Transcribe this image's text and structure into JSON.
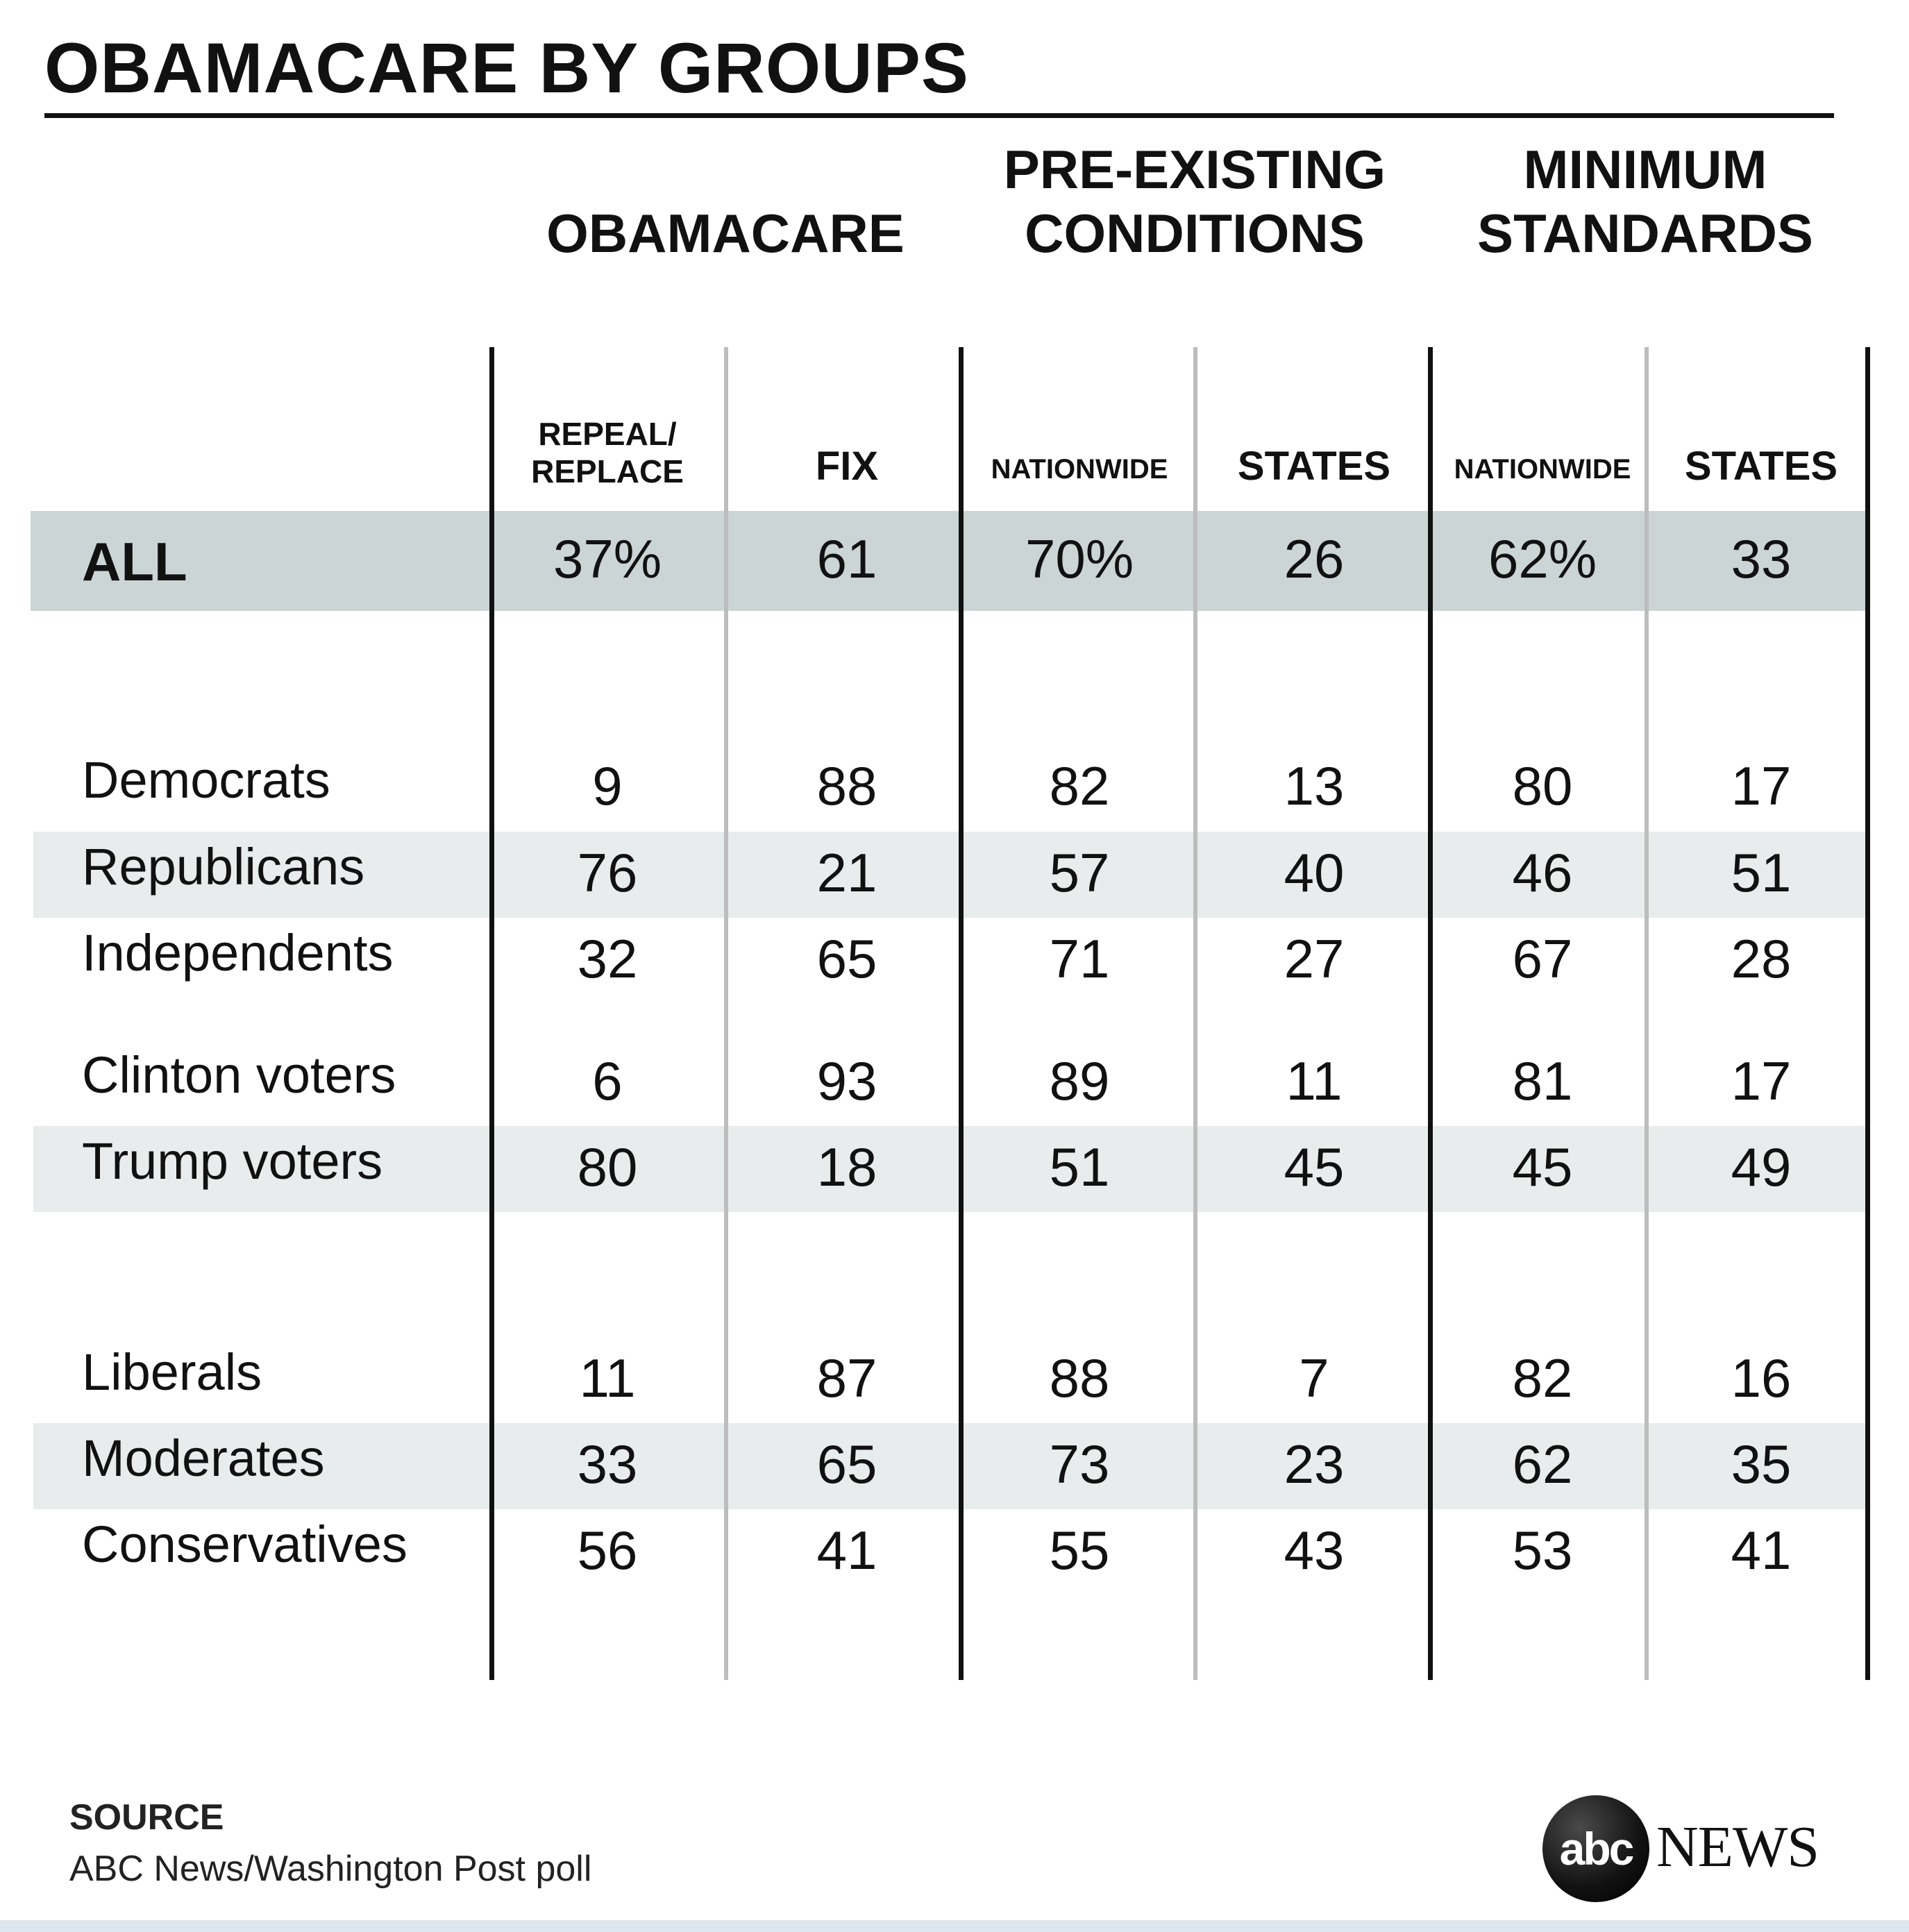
{
  "title": "OBAMACARE BY GROUPS",
  "chart_data": {
    "type": "table",
    "column_groups": [
      {
        "lines": [
          "OBAMACARE"
        ],
        "columns": [
          "REPEAL/ REPLACE",
          "FIX"
        ]
      },
      {
        "lines": [
          "PRE-EXISTING",
          "CONDITIONS"
        ],
        "columns": [
          "NATIONWIDE",
          "STATES"
        ]
      },
      {
        "lines": [
          "MINIMUM",
          "STANDARDS"
        ],
        "columns": [
          "NATIONWIDE",
          "STATES"
        ]
      }
    ],
    "columns": [
      "REPEAL/ REPLACE",
      "FIX",
      "NATIONWIDE",
      "STATES",
      "NATIONWIDE",
      "STATES"
    ],
    "rows": [
      {
        "label": "ALL",
        "values": [
          "37%",
          "61",
          "70%",
          "26",
          "62%",
          "33"
        ]
      },
      {
        "label": "Democrats",
        "values": [
          "9",
          "88",
          "82",
          "13",
          "80",
          "17"
        ]
      },
      {
        "label": "Republicans",
        "values": [
          "76",
          "21",
          "57",
          "40",
          "46",
          "51"
        ]
      },
      {
        "label": "Independents",
        "values": [
          "32",
          "65",
          "71",
          "27",
          "67",
          "28"
        ]
      },
      {
        "label": "Clinton voters",
        "values": [
          "6",
          "93",
          "89",
          "11",
          "81",
          "17"
        ]
      },
      {
        "label": "Trump voters",
        "values": [
          "80",
          "18",
          "51",
          "45",
          "45",
          "49"
        ]
      },
      {
        "label": "Liberals",
        "values": [
          "11",
          "87",
          "88",
          "7",
          "82",
          "16"
        ]
      },
      {
        "label": "Moderates",
        "values": [
          "33",
          "65",
          "73",
          "23",
          "62",
          "35"
        ]
      },
      {
        "label": "Conservatives",
        "values": [
          "56",
          "41",
          "55",
          "43",
          "53",
          "41"
        ]
      }
    ],
    "shaded_rows": [
      "ALL",
      "Republicans",
      "Trump voters",
      "Moderates"
    ]
  },
  "source": {
    "heading": "SOURCE",
    "text": "ABC News/Washington Post poll"
  },
  "logo": {
    "circle_text": "abc",
    "news_text": "NEWS"
  },
  "colors": {
    "all_band": "#ccd5d5",
    "alt_band": "#e8ecec",
    "divider_dark": "#111111",
    "divider_light": "#bdbdbd"
  }
}
